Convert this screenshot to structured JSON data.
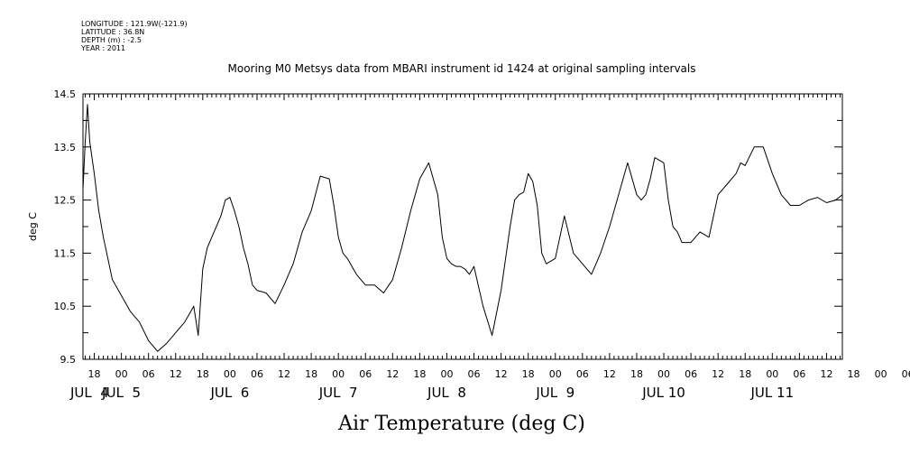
{
  "meta": {
    "longitude": "LONGITUDE : 121.9W(-121.9)",
    "latitude": "LATITUDE : 36.8N",
    "depth": "DEPTH (m) : -2.5",
    "year": "YEAR : 2011"
  },
  "chart_data": {
    "type": "line",
    "title": "Mooring M0 Metsys data from MBARI instrument id 1424 at original sampling intervals",
    "xlabel": "Air Temperature (deg C)",
    "ylabel": "deg C",
    "ylim": [
      9.5,
      14.5
    ],
    "yticks": [
      "9.5",
      "10.5",
      "11.5",
      "12.5",
      "13.5",
      "14.5"
    ],
    "x_unit": "hours since JUL 4 00:00, 2011",
    "xlim": [
      15.5,
      183.5
    ],
    "hour_tick_labels": [
      "18",
      "00",
      "06",
      "12",
      "18",
      "00",
      "06",
      "12",
      "18",
      "00",
      "06",
      "12",
      "18",
      "00",
      "06",
      "12",
      "18",
      "00",
      "06",
      "12",
      "18",
      "00",
      "06",
      "12",
      "18",
      "00",
      "06",
      "12",
      "18",
      "00",
      "06",
      "12"
    ],
    "day_labels": [
      "JUL  4",
      "JUL  5",
      "JUL  6",
      "JUL  7",
      "JUL  8",
      "JUL  9",
      "JUL 10",
      "JUL 11"
    ],
    "grid": false,
    "series": [
      {
        "color": "#000000",
        "x": [
          15.5,
          16,
          16.5,
          17,
          18,
          19,
          20,
          22,
          24,
          26,
          28,
          30,
          32,
          34,
          36,
          38,
          40,
          41,
          42,
          43,
          44,
          45,
          46,
          47,
          48,
          49,
          50,
          51,
          52,
          53,
          54,
          56,
          58,
          60,
          61,
          62,
          63,
          64,
          66,
          68,
          70,
          71,
          72,
          73,
          74,
          75,
          76,
          77,
          78,
          80,
          82,
          84,
          86,
          88,
          90,
          92,
          94,
          95,
          96,
          97,
          98,
          99,
          100,
          101,
          102,
          104,
          106,
          108,
          110,
          111,
          112,
          113,
          114,
          115,
          116,
          117,
          118,
          120,
          122,
          124,
          126,
          128,
          130,
          132,
          134,
          136,
          138,
          139,
          140,
          141,
          142,
          144,
          145,
          146,
          147,
          148,
          150,
          152,
          154,
          156,
          158,
          160,
          161,
          162,
          164,
          166,
          168,
          169,
          170,
          172,
          174,
          176,
          178,
          180,
          182,
          183.5
        ],
        "y": [
          12.7,
          13.6,
          14.3,
          13.6,
          13.0,
          12.3,
          11.8,
          11.0,
          10.7,
          10.4,
          10.2,
          9.85,
          9.65,
          9.8,
          10.0,
          10.2,
          10.5,
          9.95,
          11.2,
          11.6,
          11.8,
          12.0,
          12.2,
          12.5,
          12.55,
          12.3,
          12.0,
          11.6,
          11.3,
          10.9,
          10.8,
          10.75,
          10.55,
          10.9,
          11.1,
          11.3,
          11.6,
          11.9,
          12.3,
          12.95,
          12.9,
          12.4,
          11.8,
          11.5,
          11.4,
          11.25,
          11.1,
          11.0,
          10.9,
          10.9,
          10.75,
          11.0,
          11.6,
          12.3,
          12.9,
          13.2,
          12.6,
          11.8,
          11.4,
          11.3,
          11.25,
          11.25,
          11.2,
          11.1,
          11.25,
          10.5,
          9.95,
          10.8,
          12.0,
          12.5,
          12.6,
          12.65,
          13.0,
          12.85,
          12.4,
          11.5,
          11.3,
          11.4,
          12.2,
          11.5,
          11.3,
          11.1,
          11.5,
          12.0,
          12.6,
          13.2,
          12.6,
          12.5,
          12.6,
          12.9,
          13.3,
          13.2,
          12.5,
          12.0,
          11.9,
          11.7,
          11.7,
          11.9,
          11.8,
          12.6,
          12.8,
          13.0,
          13.2,
          13.15,
          13.5,
          13.5,
          13.0,
          12.8,
          12.6,
          12.4,
          12.4,
          12.5,
          12.55,
          12.45,
          12.5,
          12.6
        ]
      }
    ]
  }
}
